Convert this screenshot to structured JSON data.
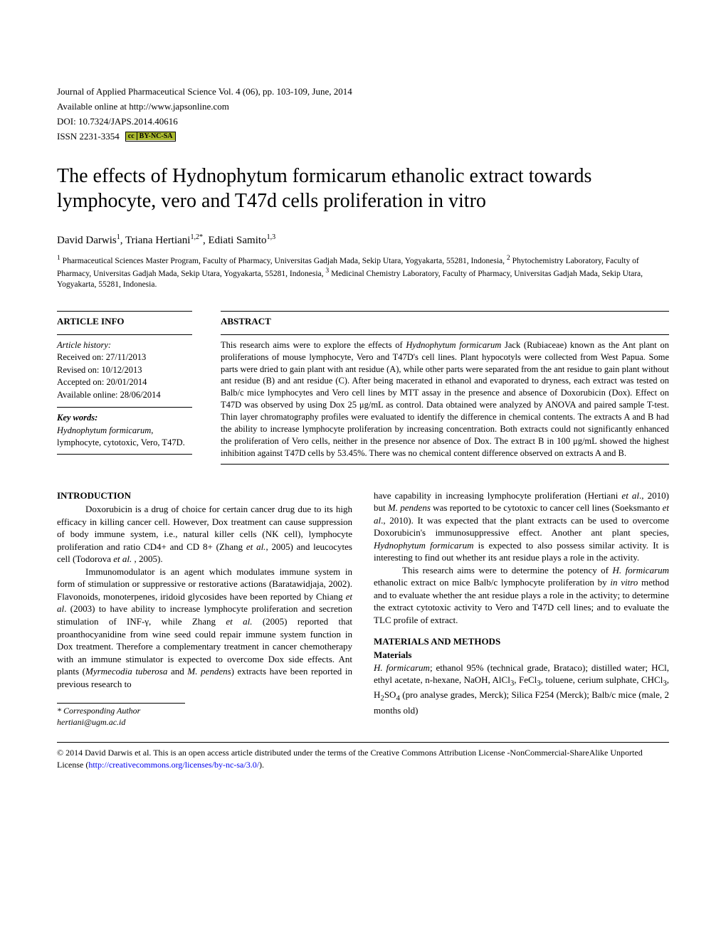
{
  "meta": {
    "journal_line": "Journal of Applied Pharmaceutical Science Vol. 4 (06), pp. 103-109, June, 2014",
    "available": "Available online at http://www.japsonline.com",
    "doi": "DOI: 10.7324/JAPS.2014.40616",
    "issn": "ISSN 2231-3354",
    "cc_left": "cc",
    "cc_right": "BY-NC-SA"
  },
  "title": "The effects of Hydnophytum formicarum ethanolic extract towards lymphocyte, vero and T47d cells proliferation in vitro",
  "authors_html": "David Darwis<sup>1</sup>, Triana Hertiani<sup>1,2*</sup>, Ediati Samito<sup>1,3</sup>",
  "affiliations_html": "<sup>1</sup> Pharmaceutical Sciences Master Program, Faculty of Pharmacy, Universitas Gadjah Mada, Sekip Utara, Yogyakarta, 55281, Indonesia, <sup>2</sup> Phytochemistry Laboratory, Faculty of Pharmacy, Universitas Gadjah Mada, Sekip Utara, Yogyakarta, 55281, Indonesia, <sup>3</sup> Medicinal Chemistry Laboratory, Faculty of Pharmacy, Universitas Gadjah Mada, Sekip Utara, Yogyakarta, 55281, Indonesia.",
  "article_info": {
    "label": "ARTICLE INFO",
    "history_label": "Article history:",
    "received": "Received on: 27/11/2013",
    "revised": "Revised on: 10/12/2013",
    "accepted": "Accepted on: 20/01/2014",
    "online": "Available online: 28/06/2014",
    "keywords_label": "Key words:",
    "keywords_html": "<span class=\"italic\">Hydnophytum formicarum</span>, lymphocyte, cytotoxic, Vero, T47D."
  },
  "abstract": {
    "label": "ABSTRACT",
    "text_html": "This research aims were to explore the effects of <span class=\"italic\">Hydnophytum formicarum</span> Jack (Rubiaceae) known as the Ant plant on proliferations of mouse lymphocyte, Vero and T47D's cell lines. Plant hypocotyls were collected from West Papua. Some parts were dried to gain plant with ant residue (A), while other parts were separated from the ant residue to gain plant without ant residue (B) and ant residue (C). After being macerated in ethanol and evaporated to dryness, each extract was tested on Balb/c mice lymphocytes and Vero cell lines by MTT assay in the presence and absence of Doxorubicin (Dox). Effect on T47D was observed by using Dox 25 μg/mL as control. Data obtained were analyzed by ANOVA and paired sample T-test. Thin layer chromatography profiles were evaluated to identify the difference in chemical contents. The extracts A and B had the ability to increase lymphocyte proliferation by increasing concentration. Both extracts could not significantly enhanced the proliferation of Vero cells, neither in the presence nor absence of Dox. The extract B in 100 μg/mL showed the highest inhibition against T47D cells by 53.45%. There was no chemical content difference observed on extracts A and B."
  },
  "introduction": {
    "heading": "INTRODUCTION",
    "p1_html": "Doxorubicin is a drug of choice for certain cancer drug due to its high efficacy in killing cancer cell. However, Dox treatment can cause suppression of body immune system, i.e., natural killer cells (NK cell), lymphocyte proliferation and ratio CD4+ and CD 8+ (Zhang <span class=\"italic\">et al.</span>, 2005) and leucocytes cell (Todorova <span class=\"italic\">et al.</span> , 2005).",
    "p2_html": "Immunomodulator is an agent which modulates immune system in form of stimulation or suppressive or restorative actions (Baratawidjaja, 2002). Flavonoids, monoterpenes, iridoid glycosides have been reported by Chiang <span class=\"italic\">et al</span>. (2003) to have ability to increase lymphocyte proliferation and secretion stimulation of INF-γ, while Zhang <span class=\"italic\">et al.</span> (2005) reported that proanthocyanidine from wine seed could repair immune system function in Dox treatment. Therefore a complementary treatment in cancer chemotherapy with an immune stimulator is expected to overcome Dox side effects.  Ant plants (<span class=\"italic\">Myrmecodia tuberosa</span> and <span class=\"italic\">M.  pendens</span>) extracts have been reported in previous research to",
    "p3_html": "have capability in increasing lymphocyte proliferation (Hertiani <span class=\"italic\">et al</span>., 2010) but <span class=\"italic\">M. pendens</span> was reported to be cytotoxic to cancer cell lines (Soeksmanto <span class=\"italic\">et al</span>., 2010).  It was expected that the plant extracts can be used to overcome Doxorubicin's immunosuppressive effect. Another ant plant species, <span class=\"italic\">Hydnophytum formicarum</span> is expected to also possess similar activity. It is interesting to find out whether its ant residue plays a role in the activity.",
    "p4_html": "This research aims were to determine the potency of <span class=\"italic\">H. formicarum</span> ethanolic extract on mice Balb/c lymphocyte proliferation by <span class=\"italic\">in vitro</span> method and to evaluate whether the ant residue plays a role in the activity; to determine the extract cytotoxic activity to Vero and T47D cell lines; and to evaluate the TLC profile of extract."
  },
  "methods": {
    "heading": "MATERIALS AND METHODS",
    "sub1": "Materials",
    "p1_html": "<span class=\"italic\">H. formicarum</span>; ethanol 95% (technical grade, Brataco);  distilled water; HCl,  ethyl acetate, n-hexane, NaOH, AlCl<sub>3</sub>, FeCl<sub>3</sub>, toluene, cerium sulphate, CHCl<sub>3</sub>, H<sub>2</sub>SO<sub>4</sub> (pro analyse grades, Merck);  Silica F254 (Merck); Balb/c mice (male, 2 months old)"
  },
  "corresponding": {
    "label": "* Corresponding Author",
    "email": "hertiani@ugm.ac.id"
  },
  "license": {
    "text_prefix": "© 2014 David Darwis et al. This is an open access article distributed under the terms of the Creative Commons Attribution License -NonCommercial-ShareAlike Unported License (",
    "link_text": "http://creativecommons.org/licenses/by-nc-sa/3.0/",
    "text_suffix": ")."
  }
}
